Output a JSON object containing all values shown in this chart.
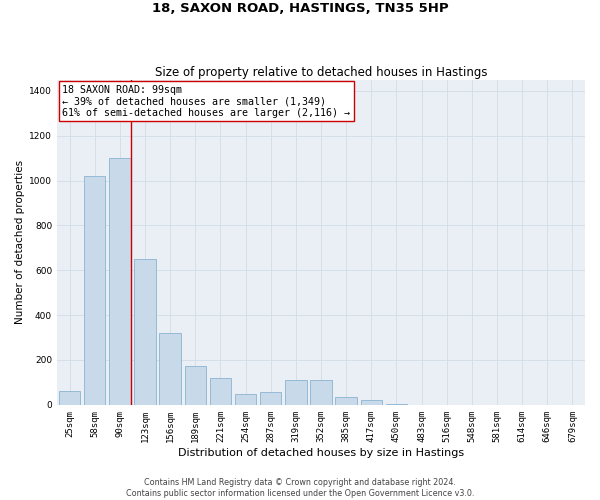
{
  "title": "18, SAXON ROAD, HASTINGS, TN35 5HP",
  "subtitle": "Size of property relative to detached houses in Hastings",
  "xlabel": "Distribution of detached houses by size in Hastings",
  "ylabel": "Number of detached properties",
  "categories": [
    "25sqm",
    "58sqm",
    "90sqm",
    "123sqm",
    "156sqm",
    "189sqm",
    "221sqm",
    "254sqm",
    "287sqm",
    "319sqm",
    "352sqm",
    "385sqm",
    "417sqm",
    "450sqm",
    "483sqm",
    "516sqm",
    "548sqm",
    "581sqm",
    "614sqm",
    "646sqm",
    "679sqm"
  ],
  "values": [
    60,
    1020,
    1100,
    650,
    320,
    175,
    120,
    50,
    55,
    110,
    110,
    35,
    20,
    5,
    0,
    0,
    0,
    0,
    0,
    0,
    0
  ],
  "bar_color": "#c8d9ea",
  "bar_edge_color": "#7baacb",
  "bar_edge_width": 0.5,
  "vline_x_index": 2,
  "vline_color": "#cc0000",
  "annotation_text": "18 SAXON ROAD: 99sqm\n← 39% of detached houses are smaller (1,349)\n61% of semi-detached houses are larger (2,116) →",
  "annotation_box_color": "#ffffff",
  "annotation_box_edge": "#cc0000",
  "ylim": [
    0,
    1450
  ],
  "yticks": [
    0,
    200,
    400,
    600,
    800,
    1000,
    1200,
    1400
  ],
  "grid_color": "#d0dce8",
  "background_color": "#eaeff5",
  "footer": "Contains HM Land Registry data © Crown copyright and database right 2024.\nContains public sector information licensed under the Open Government Licence v3.0.",
  "title_fontsize": 9.5,
  "subtitle_fontsize": 8.5,
  "xlabel_fontsize": 8,
  "ylabel_fontsize": 7.5,
  "tick_fontsize": 6.5,
  "annotation_fontsize": 7.2,
  "footer_fontsize": 5.8
}
